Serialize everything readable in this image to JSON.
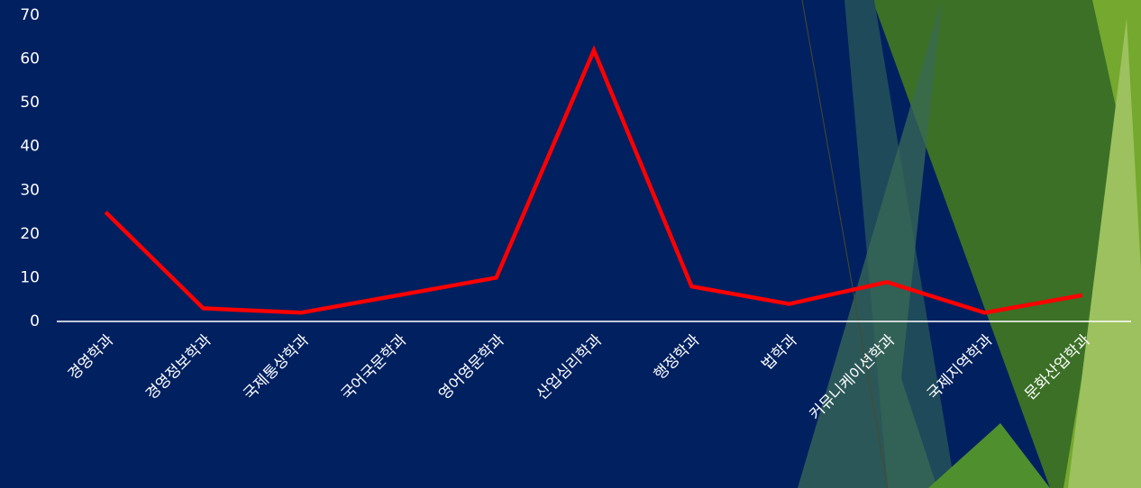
{
  "chart_data": {
    "type": "line",
    "categories": [
      "경영학과",
      "경영정보학과",
      "국제통상학과",
      "국어국문학과",
      "영어영문학과",
      "산업심리학과",
      "행정학과",
      "법학과",
      "커뮤니케이션학과",
      "국제지역학과",
      "문화산업학과"
    ],
    "values": [
      25,
      3,
      2,
      6,
      10,
      62,
      8,
      4,
      9,
      2,
      6
    ],
    "color": "#ff0000",
    "ylim": [
      0,
      70
    ],
    "yticks": [
      0,
      10,
      20,
      30,
      40,
      50,
      60,
      70
    ],
    "grid": false
  }
}
